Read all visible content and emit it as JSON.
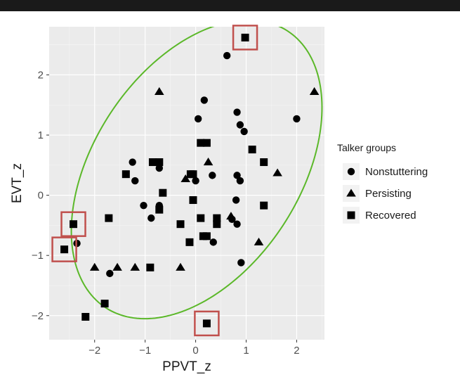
{
  "chart_data": {
    "type": "scatter",
    "xlabel": "PPVT_z",
    "ylabel": "EVT_z",
    "xlim": [
      -2.9,
      2.55
    ],
    "ylim": [
      -2.4,
      2.8
    ],
    "x_ticks": [
      -2,
      -1,
      0,
      1,
      2
    ],
    "y_ticks": [
      -2,
      -1,
      0,
      1,
      2
    ],
    "grid": true,
    "legend": {
      "title": "Talker groups",
      "position": "right"
    },
    "colors": {
      "panel": "#ebebeb",
      "grid_major": "#ffffff",
      "grid_minor": "#f5f5f5",
      "ellipse": "#5bb829",
      "highlight": "#c0504d",
      "points": "#000000"
    },
    "ellipse": {
      "center": [
        0.02,
        0.43
      ],
      "semi_axis_major": 2.95,
      "semi_axis_minor": 1.9,
      "angle_deg": 45
    },
    "series": [
      {
        "name": "Nonstuttering",
        "marker": "circle",
        "points": [
          [
            0.62,
            2.32
          ],
          [
            0.17,
            1.58
          ],
          [
            0.05,
            1.27
          ],
          [
            0.82,
            1.38
          ],
          [
            0.88,
            1.17
          ],
          [
            0.96,
            1.06
          ],
          [
            2.0,
            1.27
          ],
          [
            -1.25,
            0.55
          ],
          [
            -0.72,
            0.45
          ],
          [
            -1.2,
            0.24
          ],
          [
            0.33,
            0.33
          ],
          [
            0.82,
            0.33
          ],
          [
            0.88,
            0.24
          ],
          [
            0.0,
            0.24
          ],
          [
            -0.72,
            -0.17
          ],
          [
            -1.03,
            -0.17
          ],
          [
            -0.88,
            -0.38
          ],
          [
            0.8,
            -0.08
          ],
          [
            0.82,
            -0.48
          ],
          [
            0.72,
            -0.4
          ],
          [
            0.35,
            -0.78
          ],
          [
            -2.35,
            -0.8
          ],
          [
            0.9,
            -1.12
          ],
          [
            -1.7,
            -1.3
          ]
        ]
      },
      {
        "name": "Persisting",
        "marker": "triangle",
        "points": [
          [
            -0.72,
            1.72
          ],
          [
            2.35,
            1.72
          ],
          [
            0.25,
            0.55
          ],
          [
            1.62,
            0.37
          ],
          [
            -0.2,
            0.27
          ],
          [
            0.7,
            -0.35
          ],
          [
            1.25,
            -0.78
          ],
          [
            -2.0,
            -1.2
          ],
          [
            -1.55,
            -1.2
          ],
          [
            -1.2,
            -1.2
          ],
          [
            -0.3,
            -1.2
          ]
        ]
      },
      {
        "name": "Recovered",
        "marker": "square",
        "points": [
          [
            0.98,
            2.62
          ],
          [
            0.1,
            0.87
          ],
          [
            0.22,
            0.87
          ],
          [
            1.12,
            0.76
          ],
          [
            1.35,
            0.55
          ],
          [
            -0.85,
            0.55
          ],
          [
            -0.72,
            0.55
          ],
          [
            -1.38,
            0.35
          ],
          [
            -0.1,
            0.35
          ],
          [
            -0.05,
            0.35
          ],
          [
            -0.65,
            0.04
          ],
          [
            -0.05,
            -0.08
          ],
          [
            1.35,
            -0.17
          ],
          [
            -0.72,
            -0.24
          ],
          [
            -1.72,
            -0.38
          ],
          [
            0.1,
            -0.38
          ],
          [
            0.42,
            -0.38
          ],
          [
            0.42,
            -0.48
          ],
          [
            -0.3,
            -0.48
          ],
          [
            0.15,
            -0.68
          ],
          [
            0.22,
            -0.68
          ],
          [
            -0.12,
            -0.78
          ],
          [
            -2.42,
            -0.48
          ],
          [
            -2.6,
            -0.9
          ],
          [
            -0.9,
            -1.2
          ],
          [
            -1.8,
            -1.8
          ],
          [
            -2.18,
            -2.02
          ],
          [
            0.22,
            -2.13
          ]
        ]
      }
    ],
    "highlighted_points": [
      [
        0.98,
        2.62
      ],
      [
        -2.42,
        -0.48
      ],
      [
        -2.6,
        -0.9
      ],
      [
        0.22,
        -2.13
      ]
    ]
  }
}
